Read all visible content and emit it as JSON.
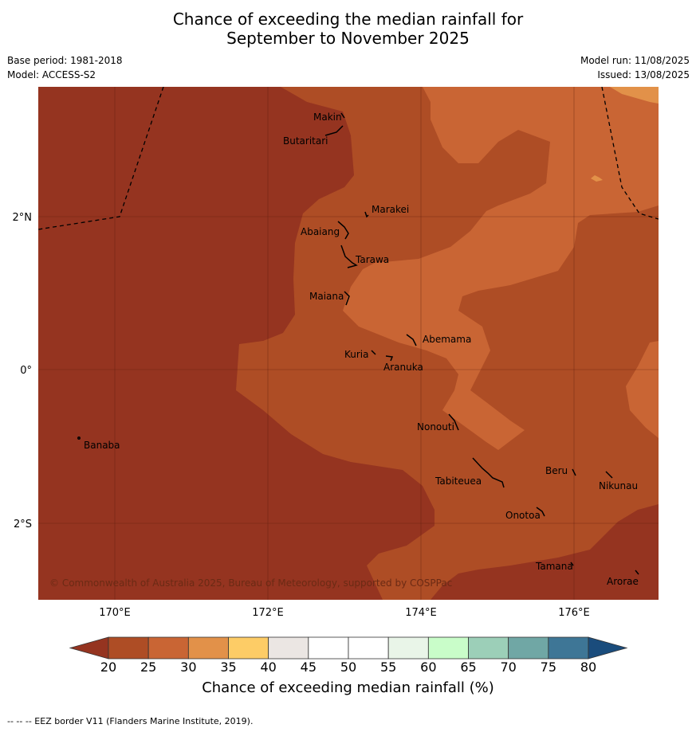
{
  "title_line1": "Chance of exceeding the median rainfall for",
  "title_line2": "September to November 2025",
  "meta": {
    "base_period": "Base period: 1981-2018",
    "model": "Model: ACCESS-S2",
    "model_run": "Model run: 11/08/2025",
    "issued": "Issued: 13/08/2025"
  },
  "map": {
    "lon_labels": [
      "170°E",
      "172°E",
      "174°E",
      "176°E"
    ],
    "lat_labels": [
      "2°N",
      "0°",
      "2°S"
    ],
    "copyright": "© Commonwealth of Australia 2025, Bureau of Meteorology, supported by COSPPac",
    "places": [
      "Makin",
      "Butaritari",
      "Marakei",
      "Abaiang",
      "Tarawa",
      "Maiana",
      "Abemama",
      "Kuria",
      "Aranuka",
      "Nonouti",
      "Banaba",
      "Tabiteuea",
      "Beru",
      "Nikunau",
      "Onotoa",
      "Tamana",
      "Arorae"
    ]
  },
  "colorbar": {
    "ticks": [
      "20",
      "25",
      "30",
      "35",
      "40",
      "45",
      "50",
      "55",
      "60",
      "65",
      "70",
      "75",
      "80"
    ],
    "colors": [
      "#ae4d25",
      "#c96534",
      "#e29149",
      "#fdcc66",
      "#ebe6e3",
      "#ffffff",
      "#ffffff",
      "#e9f5e8",
      "#c9fdc9",
      "#9ccfb8",
      "#70a7a5",
      "#3e7696"
    ],
    "under_color": "#953420",
    "over_color": "#1a4c7c",
    "label": "Chance of exceeding median rainfall (%)"
  },
  "footnote": "--  --  -- EEZ border V11 (Flanders Marine Institute, 2019)."
}
